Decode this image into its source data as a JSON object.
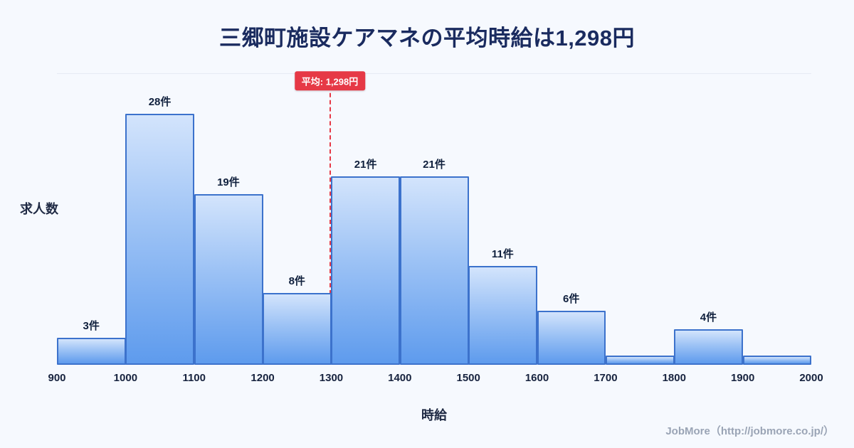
{
  "page": {
    "title": "三郷町施設ケアマネの平均時給は1,298円",
    "footer": "JobMore（http://jobmore.co.jp/）"
  },
  "chart_data": {
    "type": "bar",
    "subtype": "histogram",
    "title": "三郷町施設ケアマネの平均時給は1,298円",
    "xlabel": "時給",
    "ylabel": "求人数",
    "bin_edges": [
      900,
      1000,
      1100,
      1200,
      1300,
      1400,
      1500,
      1600,
      1700,
      1800,
      1900,
      2000
    ],
    "values": [
      3,
      28,
      19,
      8,
      21,
      21,
      11,
      6,
      1,
      4,
      1
    ],
    "bar_labels": [
      "3件",
      "28件",
      "19件",
      "8件",
      "21件",
      "21件",
      "11件",
      "6件",
      "",
      "4件",
      ""
    ],
    "average": {
      "value": 1298,
      "label": "平均: 1,298円"
    },
    "ylim": [
      0,
      28
    ],
    "grid": false,
    "legend": false,
    "colors": {
      "background": "#f6f9fe",
      "bar_gradient_top": "#d3e4fc",
      "bar_gradient_bottom": "#5e9bed",
      "bar_border": "#3c72cc",
      "average_accent": "#e63946",
      "title_text": "#1a2b5f",
      "footer_text": "#9aa4b5"
    }
  }
}
